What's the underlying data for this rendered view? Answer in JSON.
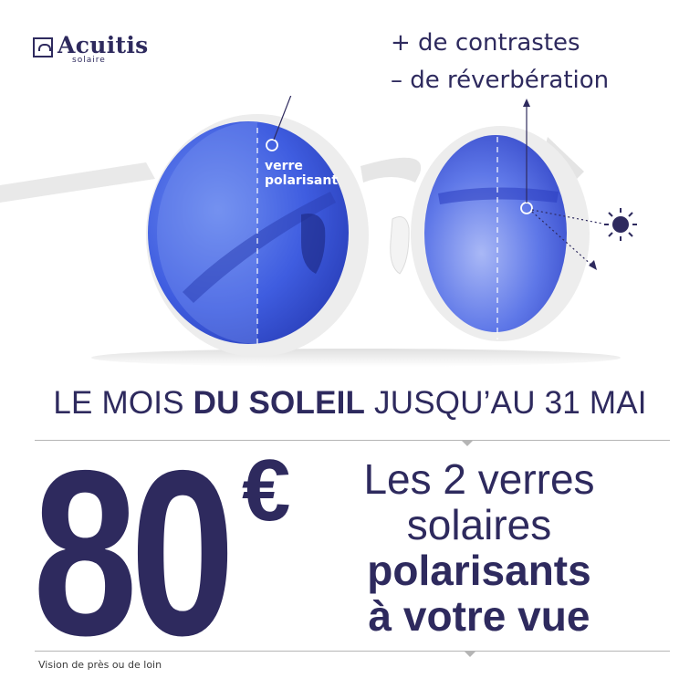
{
  "brand": {
    "name": "Acuitis",
    "sub": "solaire"
  },
  "callouts": {
    "line1": "+ de contrastes",
    "line2": "– de réverbération"
  },
  "lens_label": {
    "line1": "verre",
    "line2": "polarisant"
  },
  "headline": {
    "part1": "LE MOIS ",
    "part2": "DU SOLEIL",
    "part3": " JUSQU’AU 31 MAI"
  },
  "price": {
    "amount": "80",
    "currency": "€"
  },
  "offer": {
    "line1": "Les 2 verres",
    "line2": "solaires",
    "line3": "polarisants",
    "line4": "à votre vue"
  },
  "footnote": "Vision de près ou de loin",
  "colors": {
    "navy": "#2e2a5e",
    "lens_blue": "#3b55d6",
    "frame": "#ececec",
    "rule": "#b5b5b5"
  },
  "icons": [
    "logo-mark-icon",
    "sun-icon",
    "arrow-icon"
  ]
}
